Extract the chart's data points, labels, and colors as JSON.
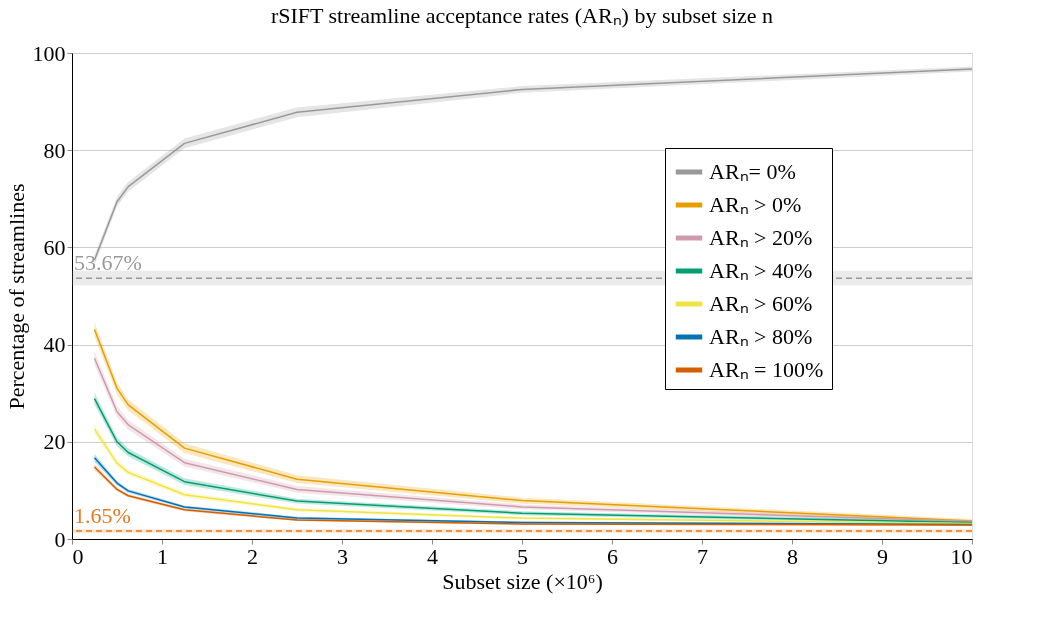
{
  "chart_data": {
    "type": "line",
    "title": "rSIFT streamline acceptance rates (ARₙ) by subset size n",
    "xlabel": "Subset size (×10⁶)",
    "ylabel": "Percentage of streamlines",
    "x": [
      0.25,
      0.5,
      0.625,
      1.25,
      2.5,
      5,
      10
    ],
    "series": [
      {
        "name": "ARₙ= 0%",
        "color": "#999999",
        "values": [
          57.4,
          69.4,
          72.5,
          81.4,
          87.8,
          92.5,
          96.7
        ],
        "lower": [
          56.4,
          68.4,
          71.5,
          80.4,
          86.8,
          91.8,
          96.2
        ],
        "upper": [
          58.4,
          70.4,
          73.5,
          82.4,
          88.8,
          93.2,
          97.2
        ]
      },
      {
        "name": "ARₙ > 0%",
        "color": "#e69f00",
        "values": [
          43.1,
          31.0,
          27.6,
          18.7,
          12.3,
          7.9,
          3.7
        ],
        "lower": [
          41.6,
          29.8,
          26.5,
          17.7,
          11.5,
          7.3,
          3.3
        ],
        "upper": [
          44.6,
          32.2,
          28.7,
          19.7,
          13.1,
          8.5,
          4.1
        ]
      },
      {
        "name": "ARₙ > 20%",
        "color": "#d09aae",
        "values": [
          37.2,
          26.2,
          23.5,
          15.7,
          10.2,
          6.6,
          3.6
        ],
        "lower": [
          35.8,
          25.1,
          22.5,
          14.9,
          9.5,
          6.1,
          3.3
        ],
        "upper": [
          38.6,
          27.3,
          24.5,
          16.5,
          10.9,
          7.1,
          3.9
        ]
      },
      {
        "name": "ARₙ > 40%",
        "color": "#009e73",
        "values": [
          28.9,
          20.0,
          17.8,
          11.8,
          7.8,
          5.3,
          3.4
        ],
        "lower": [
          27.7,
          19.1,
          17.0,
          11.1,
          7.3,
          4.9,
          3.1
        ],
        "upper": [
          30.1,
          20.9,
          18.6,
          12.5,
          8.3,
          5.7,
          3.7
        ]
      },
      {
        "name": "ARₙ > 60%",
        "color": "#f0e442",
        "values": [
          22.6,
          15.6,
          13.7,
          9.1,
          6.0,
          4.3,
          3.2
        ],
        "lower": [
          21.6,
          14.9,
          13.1,
          8.6,
          5.6,
          4.0,
          3.0
        ],
        "upper": [
          23.6,
          16.3,
          14.3,
          9.6,
          6.4,
          4.6,
          3.4
        ]
      },
      {
        "name": "ARₙ > 80%",
        "color": "#0072b2",
        "values": [
          16.7,
          11.5,
          9.9,
          6.6,
          4.3,
          3.4,
          3.0
        ],
        "lower": [
          15.9,
          11.0,
          9.5,
          6.3,
          4.0,
          3.2,
          2.8
        ],
        "upper": [
          17.5,
          12.0,
          10.3,
          6.9,
          4.6,
          3.6,
          3.2
        ]
      },
      {
        "name": "ARₙ = 100%",
        "color": "#d55e00",
        "values": [
          14.8,
          10.2,
          8.9,
          6.0,
          3.9,
          3.1,
          2.9
        ],
        "lower": [
          14.2,
          9.8,
          8.6,
          5.7,
          3.7,
          2.9,
          2.7
        ],
        "upper": [
          15.4,
          10.6,
          9.2,
          6.3,
          4.1,
          3.3,
          3.1
        ]
      }
    ],
    "xlim": [
      0,
      10
    ],
    "xticks": [
      0,
      1,
      2,
      3,
      4,
      5,
      6,
      7,
      8,
      9,
      10
    ],
    "ylim": [
      0,
      100
    ],
    "yticks": [
      0,
      20,
      40,
      60,
      80,
      100
    ],
    "ref_lines": [
      {
        "axis": "y",
        "value": 53.67,
        "label": "53.67%",
        "color": "#999999",
        "line_style": "dashed"
      },
      {
        "axis": "y",
        "value": 1.65,
        "label": "1.65%",
        "color": "#e6781e",
        "line_style": "dashed"
      }
    ],
    "bands": [
      {
        "axis": "y",
        "from": 52.2,
        "to": 55.2,
        "color": "#999999"
      },
      {
        "axis": "y",
        "from": 1.3,
        "to": 2.0,
        "color": "#e6781e"
      }
    ],
    "grid": "y",
    "legend": "right",
    "line_style": "solid",
    "marker": "none"
  }
}
